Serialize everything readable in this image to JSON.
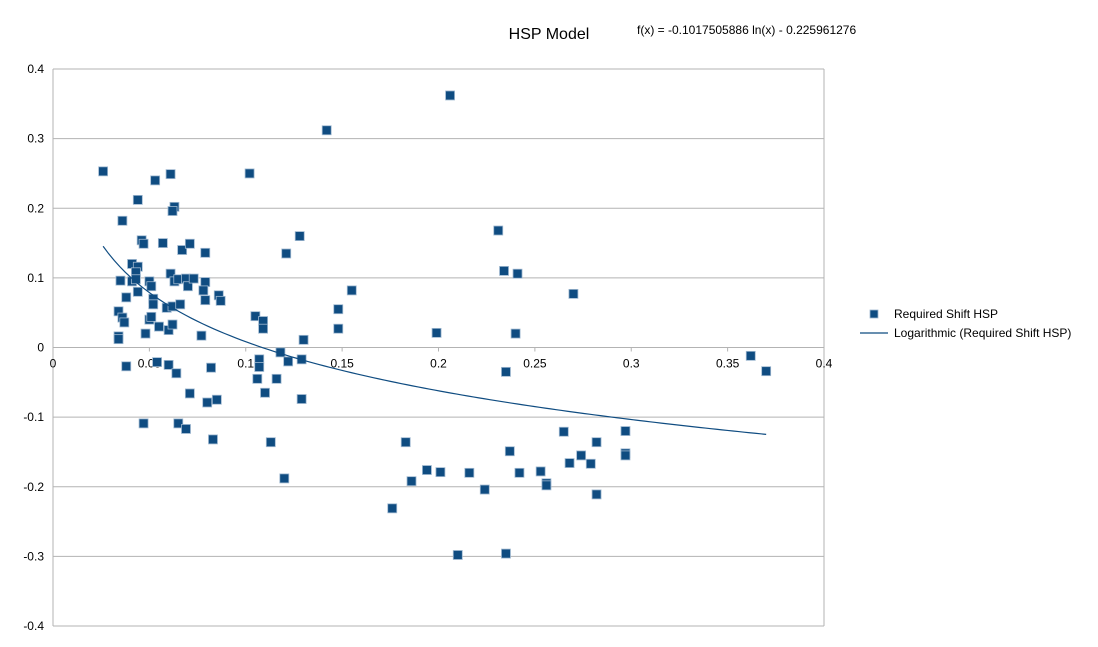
{
  "chart_data": {
    "type": "scatter",
    "title": "HSP Model",
    "trendline_equation": "f(x) = -0.1017505886 ln(x) - 0.225961276",
    "xlabel": "",
    "ylabel": "",
    "xlim": [
      0,
      0.4
    ],
    "ylim": [
      -0.4,
      0.4
    ],
    "x_ticks": [
      "0",
      "0.05",
      "0.1",
      "0.15",
      "0.2",
      "0.25",
      "0.3",
      "0.35",
      "0.4"
    ],
    "y_ticks": [
      "0.4",
      "0.3",
      "0.2",
      "0.1",
      "0",
      "-0.1",
      "-0.2",
      "-0.3",
      "-0.4"
    ],
    "grid": true,
    "legend_position": "right",
    "colors": {
      "series": "#0f4c81",
      "grid": "#b3b3b3"
    },
    "series": [
      {
        "name": "Required Shift HSP",
        "points": [
          [
            0.026,
            0.253
          ],
          [
            0.036,
            0.182
          ],
          [
            0.044,
            0.212
          ],
          [
            0.053,
            0.24
          ],
          [
            0.061,
            0.249
          ],
          [
            0.063,
            0.202
          ],
          [
            0.062,
            0.196
          ],
          [
            0.046,
            0.154
          ],
          [
            0.047,
            0.149
          ],
          [
            0.057,
            0.15
          ],
          [
            0.067,
            0.14
          ],
          [
            0.071,
            0.149
          ],
          [
            0.079,
            0.136
          ],
          [
            0.102,
            0.25
          ],
          [
            0.142,
            0.312
          ],
          [
            0.206,
            0.362
          ],
          [
            0.128,
            0.16
          ],
          [
            0.121,
            0.135
          ],
          [
            0.231,
            0.168
          ],
          [
            0.234,
            0.11
          ],
          [
            0.241,
            0.106
          ],
          [
            0.27,
            0.077
          ],
          [
            0.041,
            0.12
          ],
          [
            0.044,
            0.116
          ],
          [
            0.043,
            0.108
          ],
          [
            0.035,
            0.096
          ],
          [
            0.041,
            0.095
          ],
          [
            0.043,
            0.098
          ],
          [
            0.044,
            0.08
          ],
          [
            0.038,
            0.072
          ],
          [
            0.05,
            0.095
          ],
          [
            0.051,
            0.088
          ],
          [
            0.061,
            0.106
          ],
          [
            0.063,
            0.095
          ],
          [
            0.065,
            0.098
          ],
          [
            0.069,
            0.099
          ],
          [
            0.07,
            0.088
          ],
          [
            0.073,
            0.099
          ],
          [
            0.079,
            0.094
          ],
          [
            0.078,
            0.082
          ],
          [
            0.079,
            0.068
          ],
          [
            0.086,
            0.075
          ],
          [
            0.087,
            0.067
          ],
          [
            0.052,
            0.07
          ],
          [
            0.052,
            0.062
          ],
          [
            0.059,
            0.057
          ],
          [
            0.062,
            0.059
          ],
          [
            0.066,
            0.062
          ],
          [
            0.034,
            0.052
          ],
          [
            0.036,
            0.043
          ],
          [
            0.037,
            0.036
          ],
          [
            0.05,
            0.04
          ],
          [
            0.051,
            0.044
          ],
          [
            0.055,
            0.03
          ],
          [
            0.06,
            0.025
          ],
          [
            0.062,
            0.033
          ],
          [
            0.034,
            0.016
          ],
          [
            0.034,
            0.012
          ],
          [
            0.048,
            0.02
          ],
          [
            0.077,
            0.017
          ],
          [
            0.105,
            0.045
          ],
          [
            0.109,
            0.038
          ],
          [
            0.109,
            0.027
          ],
          [
            0.148,
            0.055
          ],
          [
            0.155,
            0.082
          ],
          [
            0.148,
            0.027
          ],
          [
            0.13,
            0.011
          ],
          [
            0.199,
            0.021
          ],
          [
            0.24,
            0.02
          ],
          [
            0.038,
            -0.027
          ],
          [
            0.054,
            -0.021
          ],
          [
            0.06,
            -0.025
          ],
          [
            0.064,
            -0.037
          ],
          [
            0.082,
            -0.029
          ],
          [
            0.107,
            -0.017
          ],
          [
            0.107,
            -0.028
          ],
          [
            0.118,
            -0.007
          ],
          [
            0.122,
            -0.02
          ],
          [
            0.129,
            -0.017
          ],
          [
            0.106,
            -0.045
          ],
          [
            0.116,
            -0.045
          ],
          [
            0.11,
            -0.065
          ],
          [
            0.071,
            -0.066
          ],
          [
            0.08,
            -0.079
          ],
          [
            0.085,
            -0.075
          ],
          [
            0.129,
            -0.074
          ],
          [
            0.235,
            -0.035
          ],
          [
            0.047,
            -0.109
          ],
          [
            0.065,
            -0.109
          ],
          [
            0.069,
            -0.117
          ],
          [
            0.083,
            -0.132
          ],
          [
            0.113,
            -0.136
          ],
          [
            0.12,
            -0.188
          ],
          [
            0.183,
            -0.136
          ],
          [
            0.186,
            -0.192
          ],
          [
            0.194,
            -0.176
          ],
          [
            0.201,
            -0.179
          ],
          [
            0.216,
            -0.18
          ],
          [
            0.224,
            -0.204
          ],
          [
            0.176,
            -0.231
          ],
          [
            0.21,
            -0.298
          ],
          [
            0.235,
            -0.296
          ],
          [
            0.237,
            -0.149
          ],
          [
            0.242,
            -0.18
          ],
          [
            0.253,
            -0.178
          ],
          [
            0.256,
            -0.195
          ],
          [
            0.256,
            -0.198
          ],
          [
            0.265,
            -0.121
          ],
          [
            0.268,
            -0.166
          ],
          [
            0.274,
            -0.155
          ],
          [
            0.279,
            -0.167
          ],
          [
            0.282,
            -0.136
          ],
          [
            0.282,
            -0.211
          ],
          [
            0.297,
            -0.12
          ],
          [
            0.297,
            -0.152
          ],
          [
            0.297,
            -0.155
          ],
          [
            0.362,
            -0.012
          ],
          [
            0.37,
            -0.034
          ]
        ]
      },
      {
        "name": "Logarithmic (Required Shift HSP)",
        "type": "line",
        "function": {
          "a": -0.1017505886,
          "b": -0.225961276,
          "x_from": 0.026,
          "x_to": 0.37
        }
      }
    ]
  }
}
